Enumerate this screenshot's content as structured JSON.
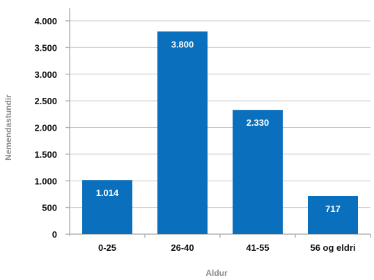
{
  "chart_data": {
    "type": "bar",
    "title": "",
    "xlabel": "Aldur",
    "ylabel": "Nemendastundir",
    "categories": [
      "0-25",
      "26-40",
      "41-55",
      "56 og eldri"
    ],
    "values": [
      1014,
      3800,
      2330,
      717
    ],
    "value_labels": [
      "1.014",
      "3.800",
      "2.330",
      "717"
    ],
    "ylim": [
      0,
      4000
    ],
    "yticks": [
      0,
      500,
      1000,
      1500,
      2000,
      2500,
      3000,
      3500,
      4000
    ],
    "ytick_labels": [
      "0",
      "500",
      "1.000",
      "1.500",
      "2.000",
      "2.500",
      "3.000",
      "3.500",
      "4.000"
    ],
    "grid": "horizontal",
    "legend": "none",
    "colors": {
      "bar": "#0a6fbd",
      "grid": "#c8c8c8",
      "axis": "#b3b3b3",
      "axis_title": "#8c8c8c",
      "tick_text": "#111111",
      "bar_label_text": "#ffffff"
    }
  }
}
